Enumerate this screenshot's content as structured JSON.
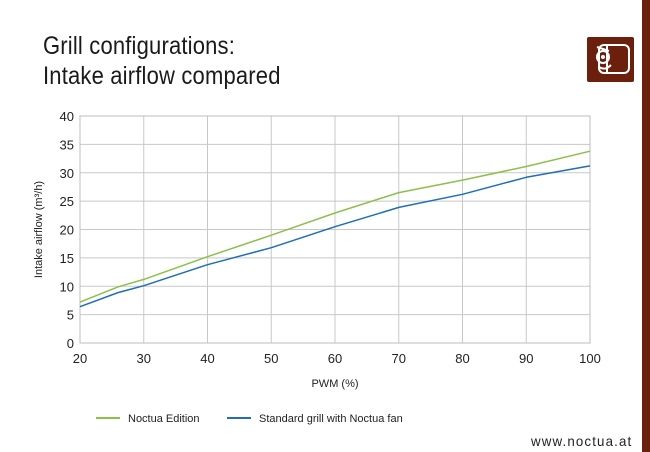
{
  "chart_data": {
    "type": "line",
    "title": "Grill configurations:",
    "subtitle": "Intake airflow compared",
    "xlabel": "PWM (%)",
    "ylabel": "Intake airflow (m³/h)",
    "xlim": [
      20,
      100
    ],
    "ylim": [
      0,
      40
    ],
    "xticks": [
      "20",
      "30",
      "40",
      "50",
      "60",
      "70",
      "80",
      "90",
      "100"
    ],
    "yticks": [
      "0",
      "5",
      "10",
      "15",
      "20",
      "25",
      "30",
      "35",
      "40"
    ],
    "grid": true,
    "legend_position": "bottom",
    "series": [
      {
        "name": "Noctua Edition",
        "color": "#8cc04a",
        "x": [
          20,
          26,
          30,
          40,
          50,
          60,
          70,
          80,
          90,
          100
        ],
        "y": [
          7.2,
          9.9,
          11.2,
          15.2,
          19.0,
          22.9,
          26.5,
          28.7,
          31.1,
          33.8
        ]
      },
      {
        "name": "Standard grill with Noctua fan",
        "color": "#1f6fb4",
        "x": [
          20,
          26,
          30,
          40,
          50,
          60,
          70,
          80,
          90,
          100
        ],
        "y": [
          6.4,
          8.9,
          10.1,
          13.8,
          16.8,
          20.5,
          23.9,
          26.2,
          29.2,
          31.2
        ]
      }
    ]
  },
  "footer": {
    "url": "www.noctua.at"
  },
  "brand": {
    "logo_icon": "noctua-owl-logo-icon",
    "accent_color": "#6b1f0d"
  }
}
